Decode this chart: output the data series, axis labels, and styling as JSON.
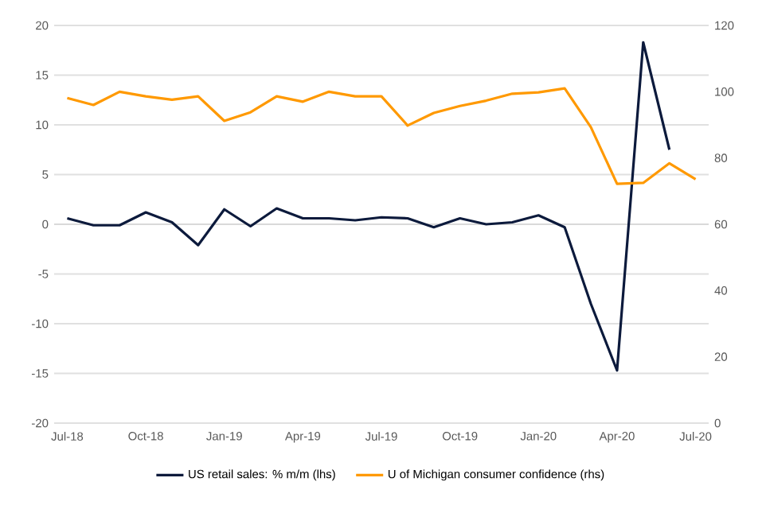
{
  "chart_data": {
    "type": "line",
    "categories": [
      "Jul-18",
      null,
      null,
      "Oct-18",
      null,
      null,
      "Jan-19",
      null,
      null,
      "Apr-19",
      null,
      null,
      "Jul-19",
      null,
      null,
      "Oct-19",
      null,
      null,
      "Jan-20",
      null,
      null,
      "Apr-20",
      null,
      null,
      "Jul-20"
    ],
    "series": [
      {
        "name": "US retail sales: % m/m (lhs)",
        "color": "#0c1a3c",
        "values": [
          0.6,
          -0.1,
          -0.1,
          1.2,
          0.2,
          -2.1,
          1.5,
          -0.2,
          1.6,
          0.6,
          0.6,
          0.4,
          0.7,
          0.6,
          -0.3,
          0.6,
          0.0,
          0.2,
          0.9,
          -0.3,
          -8.0,
          -14.7,
          18.3,
          7.5,
          null
        ]
      },
      {
        "name": "U of Michigan consumer confidence (rhs)",
        "color": "#ff9900",
        "axis": "y2",
        "values": [
          98.1,
          96.0,
          100.0,
          98.6,
          97.6,
          98.6,
          91.2,
          93.8,
          98.6,
          97.0,
          100.0,
          98.6,
          98.6,
          89.8,
          93.6,
          95.7,
          97.3,
          99.4,
          99.8,
          101.0,
          89.3,
          72.2,
          72.5,
          78.4,
          73.6
        ]
      }
    ],
    "ylim": [
      -20,
      20
    ],
    "yticks": [
      -20,
      -15,
      -10,
      -5,
      0,
      5,
      10,
      15,
      20
    ],
    "y2lim": [
      0,
      120
    ],
    "y2ticks": [
      0,
      20,
      40,
      60,
      80,
      100,
      120
    ],
    "grid": "y",
    "legend": "bottom",
    "marker": "none",
    "line_style": "solid"
  }
}
